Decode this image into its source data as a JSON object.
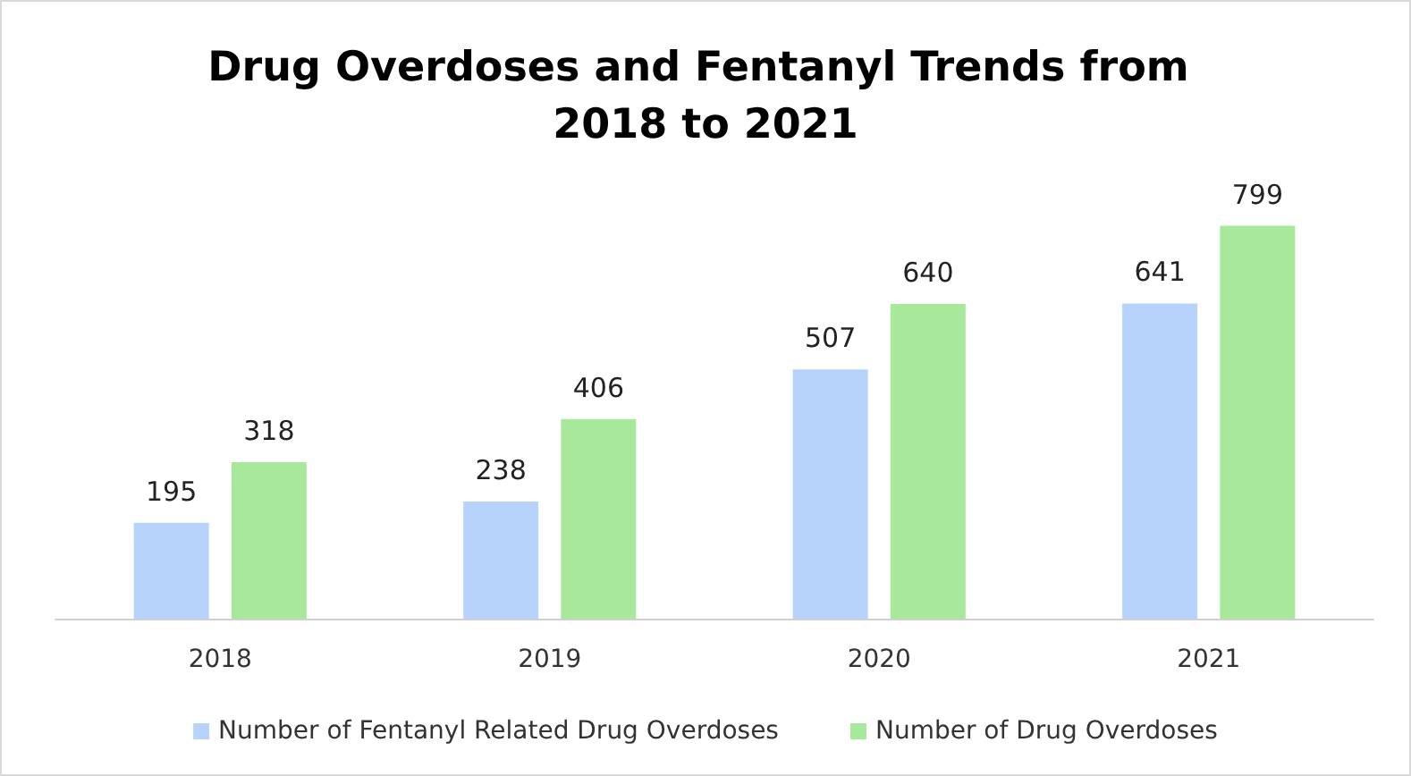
{
  "chart_data": {
    "type": "bar",
    "title": "Drug Overdoses and Fentanyl Trends from 2018 to 2021",
    "categories": [
      "2018",
      "2019",
      "2020",
      "2021"
    ],
    "series": [
      {
        "name": "Number of Fentanyl Related Drug Overdoses",
        "color": "#b7d3fb",
        "values": [
          195,
          238,
          507,
          641
        ]
      },
      {
        "name": "Number of Drug Overdoses",
        "color": "#a7e89b",
        "values": [
          318,
          406,
          640,
          799
        ]
      }
    ],
    "data_labels": true,
    "legend": "bottom"
  }
}
